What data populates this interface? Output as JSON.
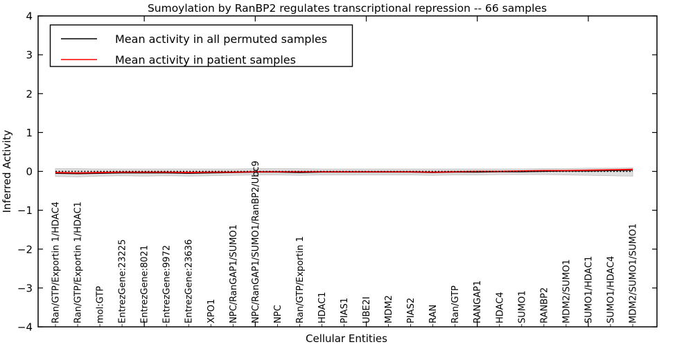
{
  "chart_data": {
    "type": "line",
    "title": "Sumoylation by RanBP2 regulates transcriptional repression -- 66 samples",
    "xlabel": "Cellular Entities",
    "ylabel": "Inferred Activity",
    "ylim": [
      -4,
      4
    ],
    "yticks": [
      -4,
      -3,
      -2,
      -1,
      0,
      1,
      2,
      3,
      4
    ],
    "grid": false,
    "legend_position": "upper left",
    "reference_line": 0,
    "categories": [
      "Ran/GTP/Exportin 1/HDAC4",
      "Ran/GTP/Exportin 1/HDAC1",
      "mol:GTP",
      "EntrezGene:23225",
      "EntrezGene:8021",
      "EntrezGene:9972",
      "EntrezGene:23636",
      "XPO1",
      "NPC/RanGAP1/SUMO1",
      "NPC/RanGAP1/SUMO1/RanBP2/Ubc9",
      "NPC",
      "Ran/GTP/Exportin 1",
      "HDAC1",
      "PIAS1",
      "UBE2I",
      "MDM2",
      "PIAS2",
      "RAN",
      "Ran/GTP",
      "RANGAP1",
      "HDAC4",
      "SUMO1",
      "RANBP2",
      "MDM2/SUMO1",
      "SUMO1/HDAC1",
      "SUMO1/HDAC4",
      "MDM2/SUMO1/SUMO1"
    ],
    "series": [
      {
        "name": "Mean activity in all permuted samples",
        "color": "#000000",
        "style": "solid",
        "values": [
          -0.05,
          -0.06,
          -0.05,
          -0.04,
          -0.04,
          -0.04,
          -0.05,
          -0.04,
          -0.03,
          -0.02,
          -0.02,
          -0.03,
          -0.02,
          -0.02,
          -0.02,
          -0.02,
          -0.02,
          -0.03,
          -0.02,
          -0.02,
          -0.01,
          -0.01,
          0.0,
          0.01,
          0.01,
          0.02,
          0.03
        ]
      },
      {
        "name": "Mean activity in patient samples",
        "color": "#ff0000",
        "style": "solid",
        "values": [
          -0.03,
          -0.04,
          -0.03,
          -0.02,
          -0.02,
          -0.02,
          -0.03,
          -0.02,
          -0.02,
          -0.01,
          -0.01,
          -0.01,
          -0.01,
          -0.01,
          -0.01,
          -0.01,
          -0.01,
          -0.02,
          -0.01,
          0.0,
          0.0,
          0.01,
          0.02,
          0.02,
          0.03,
          0.04,
          0.05
        ]
      }
    ],
    "band": {
      "name": "permuted-samples-envelope",
      "color": "#dfdfdf",
      "edge_color": "#c4c4c4",
      "upper": [
        0.07,
        0.07,
        0.06,
        0.06,
        0.06,
        0.06,
        0.06,
        0.06,
        0.06,
        0.07,
        0.07,
        0.07,
        0.06,
        0.06,
        0.06,
        0.06,
        0.06,
        0.06,
        0.06,
        0.06,
        0.06,
        0.06,
        0.07,
        0.07,
        0.08,
        0.08,
        0.09
      ],
      "lower": [
        -0.13,
        -0.14,
        -0.12,
        -0.11,
        -0.12,
        -0.11,
        -0.12,
        -0.11,
        -0.1,
        -0.09,
        -0.09,
        -0.1,
        -0.09,
        -0.09,
        -0.09,
        -0.09,
        -0.09,
        -0.1,
        -0.09,
        -0.09,
        -0.08,
        -0.08,
        -0.08,
        -0.09,
        -0.1,
        -0.11,
        -0.12
      ]
    },
    "colors": {
      "axes": "#000000",
      "background": "#ffffff",
      "reference_line": "#000000"
    }
  }
}
